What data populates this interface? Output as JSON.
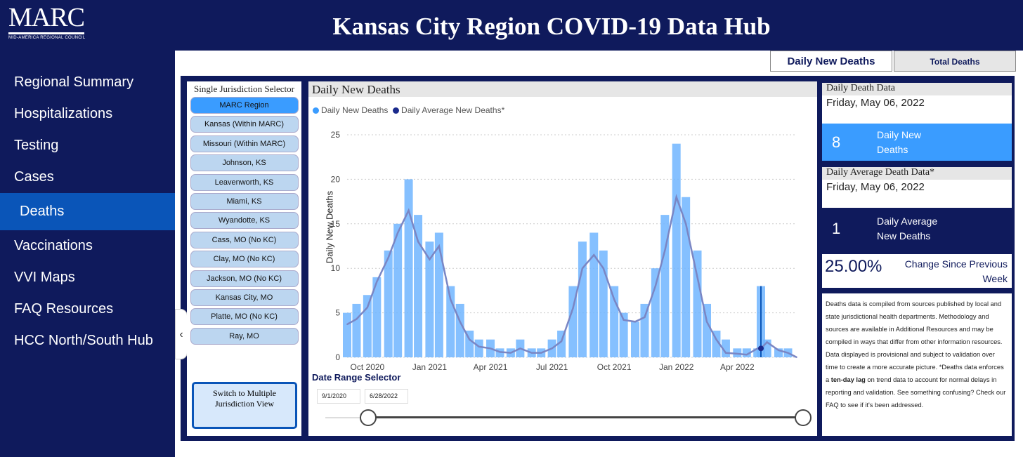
{
  "logo": {
    "name": "MARC",
    "subtitle": "MID-AMERICA REGIONAL COUNCIL"
  },
  "title": "Kansas City Region COVID-19 Data Hub",
  "nav": [
    "Regional Summary",
    "Hospitalizations",
    "Testing",
    "Cases",
    "Deaths",
    "Vaccinations",
    "VVI Maps",
    "FAQ Resources",
    "HCC North/South Hub"
  ],
  "nav_active": "Deaths",
  "tabs": {
    "active": "Daily New Deaths",
    "inactive": "Total Deaths"
  },
  "selector": {
    "header": "Single Jurisdiction Selector",
    "items": [
      "MARC Region",
      "Kansas (Within MARC)",
      "Missouri (Within MARC)",
      "Johnson, KS",
      "Leavenworth, KS",
      "Miami, KS",
      "Wyandotte, KS",
      "Cass, MO (No KC)",
      "Clay, MO (No KC)",
      "Jackson, MO (No KC)",
      "Kansas City, MO",
      "Platte, MO (No KC)",
      "Ray, MO"
    ],
    "active": "MARC Region",
    "switch_label": "Switch to Multiple Jurisdiction View"
  },
  "chart_header": "Daily New Deaths",
  "legend": {
    "series1": "Daily New Deaths",
    "series2": "Daily Average New Deaths*"
  },
  "date_range": {
    "label": "Date Range Selector",
    "start": "9/1/2020",
    "end": "6/28/2022"
  },
  "cards": {
    "daily_title": "Daily Death Data",
    "daily_date": "Friday, May 06, 2022",
    "daily_value": "8",
    "daily_label": "Daily New Deaths",
    "avg_title": "Daily Average Death Data*",
    "avg_date": "Friday, May 06, 2022",
    "avg_value": "1",
    "avg_label": "Daily Average New Deaths",
    "change_pct": "25.00%",
    "change_label": "Change Since Previous Week"
  },
  "note": {
    "before": "Deaths data is compiled from sources published by local and state jurisdictional health departments. Methodology and sources are available in Additional Resources and may be compiled in ways that differ from other information resources. Data displayed is provisional and subject to validation over time to create a more accurate picture. *Deaths data enforces a ",
    "bold": "ten-day lag",
    "after": " on trend data to account for normal delays in reporting and validation.  See something confusing? Check our FAQ to see if it's been addressed."
  },
  "colors": {
    "navy": "#0f1a5c",
    "bar": "#70b5ff",
    "line": "#7a86c4",
    "highlight_card": "#3a9cff"
  },
  "chart_data": {
    "type": "bar",
    "title": "",
    "xlabel": "",
    "ylabel": "Daily New Deaths",
    "ylim": [
      0,
      25
    ],
    "yticks": [
      0,
      5,
      10,
      15,
      20,
      25
    ],
    "xticks": [
      "Oct 2020",
      "Jan 2021",
      "Apr 2021",
      "Jul 2021",
      "Oct 2021",
      "Jan 2022",
      "Apr 2022"
    ],
    "x_range": [
      "2020-09-01",
      "2022-06-28"
    ],
    "series": [
      {
        "name": "Daily New Deaths",
        "type": "bar",
        "dates": [
          "2020-09-01",
          "2020-09-15",
          "2020-10-01",
          "2020-10-15",
          "2020-11-01",
          "2020-11-15",
          "2020-12-01",
          "2020-12-15",
          "2021-01-01",
          "2021-01-15",
          "2021-02-01",
          "2021-02-15",
          "2021-03-01",
          "2021-03-15",
          "2021-04-01",
          "2021-04-15",
          "2021-05-01",
          "2021-05-15",
          "2021-06-01",
          "2021-06-15",
          "2021-07-01",
          "2021-07-15",
          "2021-08-01",
          "2021-08-15",
          "2021-09-01",
          "2021-09-15",
          "2021-10-01",
          "2021-10-15",
          "2021-11-01",
          "2021-11-15",
          "2021-12-01",
          "2021-12-15",
          "2022-01-01",
          "2022-01-15",
          "2022-02-01",
          "2022-02-15",
          "2022-03-01",
          "2022-03-15",
          "2022-04-01",
          "2022-04-15",
          "2022-05-01",
          "2022-05-06",
          "2022-05-15",
          "2022-06-01",
          "2022-06-15",
          "2022-06-28"
        ],
        "values": [
          5,
          6,
          7,
          9,
          12,
          15,
          20,
          16,
          13,
          14,
          8,
          6,
          3,
          2,
          2,
          1,
          1,
          2,
          1,
          1,
          2,
          3,
          8,
          13,
          14,
          12,
          8,
          5,
          4,
          6,
          10,
          16,
          24,
          18,
          12,
          6,
          3,
          2,
          1,
          1,
          1,
          8,
          2,
          1,
          1,
          0
        ]
      },
      {
        "name": "Daily Average New Deaths*",
        "type": "line",
        "dates": [
          "2020-09-01",
          "2020-09-15",
          "2020-10-01",
          "2020-10-15",
          "2020-11-01",
          "2020-11-15",
          "2020-12-01",
          "2020-12-15",
          "2021-01-01",
          "2021-01-15",
          "2021-02-01",
          "2021-02-15",
          "2021-03-01",
          "2021-03-15",
          "2021-04-01",
          "2021-04-15",
          "2021-05-01",
          "2021-05-15",
          "2021-06-01",
          "2021-06-15",
          "2021-07-01",
          "2021-07-15",
          "2021-08-01",
          "2021-08-15",
          "2021-09-01",
          "2021-09-15",
          "2021-10-01",
          "2021-10-15",
          "2021-11-01",
          "2021-11-15",
          "2021-12-01",
          "2021-12-15",
          "2022-01-01",
          "2022-01-15",
          "2022-02-01",
          "2022-02-15",
          "2022-03-01",
          "2022-03-15",
          "2022-04-01",
          "2022-04-15",
          "2022-05-01",
          "2022-05-06",
          "2022-05-15",
          "2022-06-01",
          "2022-06-15",
          "2022-06-28"
        ],
        "values": [
          3.7,
          4.3,
          5.6,
          8.5,
          11.2,
          14.0,
          16.5,
          13.0,
          11.0,
          12.5,
          6.5,
          4.0,
          2.0,
          1.2,
          1.0,
          0.6,
          0.5,
          1.0,
          0.5,
          0.5,
          1.0,
          1.8,
          5.5,
          10.0,
          11.5,
          10.0,
          6.5,
          4.2,
          4.0,
          4.5,
          8.0,
          12.0,
          18.0,
          15.0,
          9.0,
          4.0,
          2.0,
          0.5,
          0.4,
          0.3,
          1.0,
          1.0,
          1.7,
          0.8,
          0.5,
          0.0
        ]
      }
    ],
    "highlight": {
      "date": "2022-05-06",
      "value": 8,
      "average": 1
    }
  }
}
